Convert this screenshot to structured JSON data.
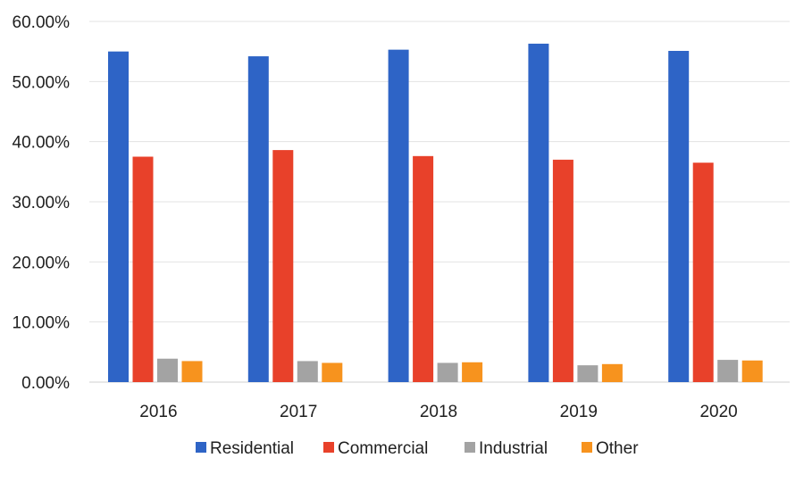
{
  "chart_data": {
    "type": "bar",
    "title": "",
    "xlabel": "",
    "ylabel": "",
    "categories": [
      "2016",
      "2017",
      "2018",
      "2019",
      "2020"
    ],
    "y_ticks": [
      "0.00%",
      "10.00%",
      "20.00%",
      "30.00%",
      "40.00%",
      "50.00%",
      "60.00%"
    ],
    "ylim": [
      0,
      60
    ],
    "grid": true,
    "legend_position": "bottom",
    "series": [
      {
        "name": "Residential",
        "color": "#2e64c6",
        "values": [
          55.0,
          54.2,
          55.3,
          56.3,
          55.1
        ]
      },
      {
        "name": "Commercial",
        "color": "#e8412a",
        "values": [
          37.5,
          38.6,
          37.6,
          37.0,
          36.5
        ]
      },
      {
        "name": "Industrial",
        "color": "#a3a3a3",
        "values": [
          3.9,
          3.5,
          3.2,
          2.8,
          3.7
        ]
      },
      {
        "name": "Other",
        "color": "#f7931e",
        "values": [
          3.5,
          3.2,
          3.3,
          3.0,
          3.6
        ]
      }
    ]
  }
}
